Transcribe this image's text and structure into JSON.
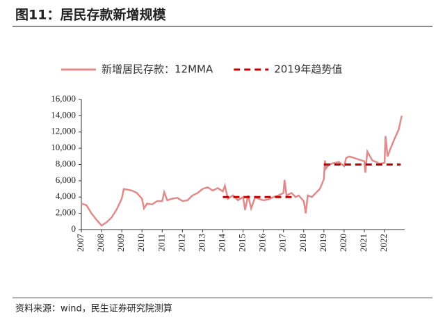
{
  "title": "图11：居民存款新增规模",
  "source": "资料来源：wind，民生证券研究院测算",
  "chart_data": {
    "type": "line",
    "xlim": [
      2007,
      2023
    ],
    "xticks": [
      2007,
      2008,
      2009,
      2010,
      2011,
      2012,
      2013,
      2014,
      2015,
      2016,
      2017,
      2018,
      2019,
      2020,
      2021,
      2022
    ],
    "ylim": [
      0,
      16000
    ],
    "yticks": [
      {
        "value": 0,
        "label": "0"
      },
      {
        "value": 2000,
        "label": "2,000"
      },
      {
        "value": 4000,
        "label": "4,000"
      },
      {
        "value": 6000,
        "label": "6,000"
      },
      {
        "value": 8000,
        "label": "8,000"
      },
      {
        "value": 10000,
        "label": "10,000"
      },
      {
        "value": 12000,
        "label": "12,000"
      },
      {
        "value": 14000,
        "label": "14,000"
      },
      {
        "value": 16000,
        "label": "16,000"
      }
    ],
    "legend": "top",
    "series": [
      {
        "name": "新增居民存款：12MMA",
        "color": "#e08a8a",
        "style": "solid",
        "x": [
          2007.0,
          2007.25,
          2007.5,
          2007.75,
          2008.0,
          2008.25,
          2008.5,
          2008.75,
          2009.0,
          2009.1,
          2009.5,
          2009.75,
          2010.0,
          2010.1,
          2010.25,
          2010.5,
          2010.75,
          2011.0,
          2011.1,
          2011.25,
          2011.5,
          2011.75,
          2012.0,
          2012.25,
          2012.5,
          2012.75,
          2013.0,
          2013.25,
          2013.5,
          2013.75,
          2014.0,
          2014.1,
          2014.25,
          2014.5,
          2014.75,
          2015.0,
          2015.1,
          2015.25,
          2015.4,
          2015.6,
          2015.75,
          2016.0,
          2016.25,
          2016.5,
          2016.75,
          2017.0,
          2017.05,
          2017.15,
          2017.4,
          2017.6,
          2017.75,
          2018.0,
          2018.1,
          2018.2,
          2018.4,
          2018.6,
          2018.8,
          2019.0,
          2019.05,
          2019.1,
          2019.25,
          2019.5,
          2019.75,
          2020.0,
          2020.1,
          2020.25,
          2020.5,
          2020.75,
          2021.0,
          2021.05,
          2021.15,
          2021.4,
          2021.6,
          2021.75,
          2022.0,
          2022.05,
          2022.15,
          2022.3,
          2022.5,
          2022.7,
          2022.85
        ],
        "values": [
          3200,
          3000,
          2000,
          1200,
          500,
          900,
          1500,
          2500,
          3800,
          5000,
          4800,
          4500,
          3800,
          2600,
          3200,
          3100,
          3500,
          3500,
          4600,
          3600,
          3800,
          3900,
          3500,
          3600,
          4200,
          4500,
          5000,
          5200,
          4800,
          5100,
          4700,
          5400,
          3800,
          4200,
          3600,
          4000,
          2400,
          4200,
          2600,
          4000,
          3800,
          3600,
          3700,
          4000,
          4200,
          4500,
          6100,
          4200,
          4500,
          4000,
          4200,
          3500,
          2000,
          4200,
          4000,
          4500,
          5000,
          6200,
          8500,
          7500,
          8000,
          8200,
          8300,
          7800,
          8800,
          9000,
          8800,
          8600,
          8400,
          7000,
          9600,
          8500,
          8300,
          8100,
          8200,
          11500,
          9000,
          10000,
          11200,
          12300,
          14000
        ]
      },
      {
        "name": "2019年趋势值",
        "color": "#c00000",
        "style": "dashed",
        "x": [
          2014,
          2017.5,
          2018,
          2019,
          2022.8
        ],
        "values": [
          4000,
          4000,
          null,
          8000,
          8000
        ]
      }
    ]
  }
}
